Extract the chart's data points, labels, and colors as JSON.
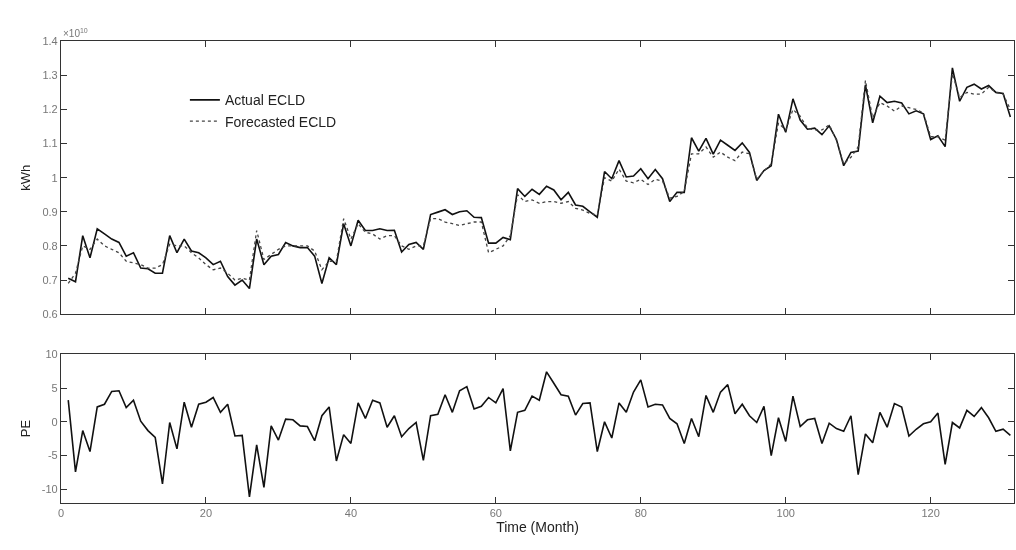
{
  "chart_data": [
    {
      "type": "line",
      "ylabel": "kWh",
      "annotations": [
        "×10$^{10}$"
      ],
      "legend": "top left",
      "tick_labels": "y",
      "marker": "none",
      "x": [
        1,
        2,
        3,
        4,
        5,
        6,
        7,
        8,
        9,
        10,
        11,
        12,
        13,
        14,
        15,
        16,
        17,
        18,
        19,
        20,
        21,
        22,
        23,
        24,
        25,
        26,
        27,
        28,
        29,
        30,
        31,
        32,
        33,
        34,
        35,
        36,
        37,
        38,
        39,
        40,
        41,
        42,
        43,
        44,
        45,
        46,
        47,
        48,
        49,
        50,
        51,
        52,
        53,
        54,
        55,
        56,
        57,
        58,
        59,
        60,
        61,
        62,
        63,
        64,
        65,
        66,
        67,
        68,
        69,
        70,
        71,
        72,
        73,
        74,
        75,
        76,
        77,
        78,
        79,
        80,
        81,
        82,
        83,
        84,
        85,
        86,
        87,
        88,
        89,
        90,
        91,
        92,
        93,
        94,
        95,
        96,
        97,
        98,
        99,
        100,
        101,
        102,
        103,
        104,
        105,
        106,
        107,
        108,
        109,
        110,
        111,
        112,
        113,
        114,
        115,
        116,
        117,
        118,
        119,
        120,
        121,
        122,
        123,
        124,
        125,
        126,
        127,
        128,
        129,
        130,
        131
      ],
      "xlim": [
        0,
        131.5
      ],
      "xticks": [
        0,
        20,
        40,
        60,
        80,
        100,
        120
      ],
      "ylim": [
        0.6,
        1.4
      ],
      "yticks": [
        0.6,
        0.7,
        0.8,
        0.9,
        1,
        1.1,
        1.2,
        1.3,
        1.4
      ],
      "series": [
        {
          "name": "Actual ECLD",
          "color": "#111111",
          "line_style": "solid",
          "values": [
            0.705,
            0.695,
            0.83,
            0.765,
            0.85,
            0.835,
            0.82,
            0.81,
            0.77,
            0.78,
            0.735,
            0.733,
            0.72,
            0.72,
            0.83,
            0.78,
            0.82,
            0.785,
            0.78,
            0.765,
            0.745,
            0.755,
            0.71,
            0.685,
            0.7,
            0.675,
            0.82,
            0.745,
            0.77,
            0.775,
            0.81,
            0.8,
            0.795,
            0.795,
            0.77,
            0.69,
            0.765,
            0.745,
            0.865,
            0.8,
            0.875,
            0.845,
            0.845,
            0.85,
            0.845,
            0.846,
            0.782,
            0.804,
            0.81,
            0.79,
            0.892,
            0.899,
            0.906,
            0.892,
            0.9,
            0.903,
            0.884,
            0.883,
            0.808,
            0.808,
            0.825,
            0.818,
            0.968,
            0.945,
            0.966,
            0.951,
            0.975,
            0.964,
            0.935,
            0.957,
            0.92,
            0.916,
            0.9,
            0.884,
            1.018,
            0.997,
            1.05,
            1.002,
            1.005,
            1.026,
            0.997,
            1.024,
            0.997,
            0.93,
            0.957,
            0.957,
            1.117,
            1.078,
            1.115,
            1.069,
            1.11,
            1.095,
            1.08,
            1.102,
            1.074,
            0.992,
            1.021,
            1.035,
            1.186,
            1.133,
            1.231,
            1.169,
            1.142,
            1.145,
            1.126,
            1.152,
            1.112,
            1.035,
            1.074,
            1.078,
            1.272,
            1.161,
            1.239,
            1.22,
            1.224,
            1.219,
            1.187,
            1.196,
            1.187,
            1.112,
            1.123,
            1.091,
            1.322,
            1.224,
            1.265,
            1.274,
            1.26,
            1.27,
            1.25,
            1.247,
            1.178
          ]
        },
        {
          "name": "Forecasted ECLD",
          "color": "#444444",
          "line_style": "dotted",
          "values": [
            0.69,
            0.72,
            0.8,
            0.79,
            0.82,
            0.8,
            0.79,
            0.78,
            0.755,
            0.75,
            0.745,
            0.735,
            0.735,
            0.745,
            0.805,
            0.8,
            0.8,
            0.78,
            0.765,
            0.745,
            0.73,
            0.735,
            0.72,
            0.7,
            0.705,
            0.7,
            0.845,
            0.76,
            0.775,
            0.79,
            0.8,
            0.8,
            0.8,
            0.8,
            0.785,
            0.73,
            0.755,
            0.755,
            0.88,
            0.82,
            0.865,
            0.84,
            0.835,
            0.82,
            0.83,
            0.83,
            0.8,
            0.79,
            0.8,
            0.8,
            0.88,
            0.88,
            0.87,
            0.865,
            0.86,
            0.865,
            0.87,
            0.87,
            0.78,
            0.79,
            0.8,
            0.83,
            0.95,
            0.93,
            0.935,
            0.925,
            0.93,
            0.93,
            0.925,
            0.93,
            0.91,
            0.905,
            0.895,
            0.89,
            1.0,
            0.99,
            1.025,
            0.99,
            0.985,
            0.995,
            0.98,
            0.995,
            0.99,
            0.94,
            0.945,
            0.96,
            1.07,
            1.07,
            1.09,
            1.06,
            1.075,
            1.06,
            1.05,
            1.075,
            1.07,
            0.995,
            1.02,
            1.04,
            1.16,
            1.14,
            1.2,
            1.18,
            1.145,
            1.14,
            1.14,
            1.155,
            1.11,
            1.04,
            1.06,
            1.09,
            1.285,
            1.175,
            1.22,
            1.21,
            1.195,
            1.21,
            1.205,
            1.2,
            1.19,
            1.12,
            1.12,
            1.11,
            1.305,
            1.235,
            1.25,
            1.245,
            1.245,
            1.265,
            1.25,
            1.245,
            1.2
          ]
        }
      ]
    },
    {
      "type": "line",
      "ylabel": "PE",
      "xlabel": "Time (Month)",
      "marker": "none",
      "x": [
        1,
        2,
        3,
        4,
        5,
        6,
        7,
        8,
        9,
        10,
        11,
        12,
        13,
        14,
        15,
        16,
        17,
        18,
        19,
        20,
        21,
        22,
        23,
        24,
        25,
        26,
        27,
        28,
        29,
        30,
        31,
        32,
        33,
        34,
        35,
        36,
        37,
        38,
        39,
        40,
        41,
        42,
        43,
        44,
        45,
        46,
        47,
        48,
        49,
        50,
        51,
        52,
        53,
        54,
        55,
        56,
        57,
        58,
        59,
        60,
        61,
        62,
        63,
        64,
        65,
        66,
        67,
        68,
        69,
        70,
        71,
        72,
        73,
        74,
        75,
        76,
        77,
        78,
        79,
        80,
        81,
        82,
        83,
        84,
        85,
        86,
        87,
        88,
        89,
        90,
        91,
        92,
        93,
        94,
        95,
        96,
        97,
        98,
        99,
        100,
        101,
        102,
        103,
        104,
        105,
        106,
        107,
        108,
        109,
        110,
        111,
        112,
        113,
        114,
        115,
        116,
        117,
        118,
        119,
        120,
        121,
        122,
        123,
        124,
        125,
        126,
        127,
        128,
        129,
        130,
        131
      ],
      "xlim": [
        0,
        131.5
      ],
      "xticks": [
        0,
        20,
        40,
        60,
        80,
        100,
        120
      ],
      "ylim": [
        -12,
        10
      ],
      "yticks": [
        -10,
        -5,
        0,
        5,
        10
      ],
      "series": [
        {
          "color": "#111111",
          "line_style": "solid",
          "values": [
            3.2,
            -7.4,
            -1.3,
            -4.4,
            2.2,
            2.6,
            4.5,
            4.6,
            2.1,
            3.2,
            0.1,
            -1.3,
            -2.3,
            -9.2,
            -0.1,
            -4.0,
            2.9,
            -0.8,
            2.6,
            2.9,
            3.6,
            1.4,
            2.6,
            -2.1,
            -2.0,
            -11.1,
            -3.4,
            -9.7,
            -0.6,
            -2.7,
            0.4,
            0.3,
            -0.6,
            -0.7,
            -2.8,
            0.9,
            2.2,
            -5.8,
            -1.9,
            -3.2,
            2.8,
            0.5,
            3.2,
            2.8,
            -0.8,
            0.9,
            -2.2,
            -1.0,
            -0.1,
            -5.7,
            0.9,
            1.1,
            4.0,
            1.4,
            4.6,
            5.2,
            1.9,
            2.3,
            3.6,
            2.8,
            4.9,
            -4.3,
            1.4,
            1.7,
            3.8,
            3.2,
            7.4,
            5.7,
            4.0,
            3.8,
            1.0,
            2.7,
            2.8,
            -4.4,
            0.0,
            -2.4,
            2.8,
            1.4,
            4.4,
            6.2,
            2.2,
            2.6,
            2.5,
            0.5,
            -0.3,
            -3.2,
            0.5,
            -2.2,
            3.9,
            1.4,
            4.4,
            5.5,
            1.2,
            2.6,
            0.9,
            -0.1,
            2.3,
            -5.0,
            0.6,
            -2.9,
            3.8,
            -0.7,
            0.3,
            0.5,
            -3.2,
            -0.2,
            -1.0,
            -1.4,
            0.9,
            -7.8,
            -1.8,
            -3.1,
            1.4,
            -0.8,
            2.7,
            2.2,
            -2.1,
            -1.1,
            -0.3,
            0.0,
            1.3,
            -6.3,
            -0.1,
            -0.9,
            1.7,
            0.8,
            2.1,
            0.6,
            -1.4,
            -1.1,
            -2.0
          ]
        }
      ]
    }
  ]
}
